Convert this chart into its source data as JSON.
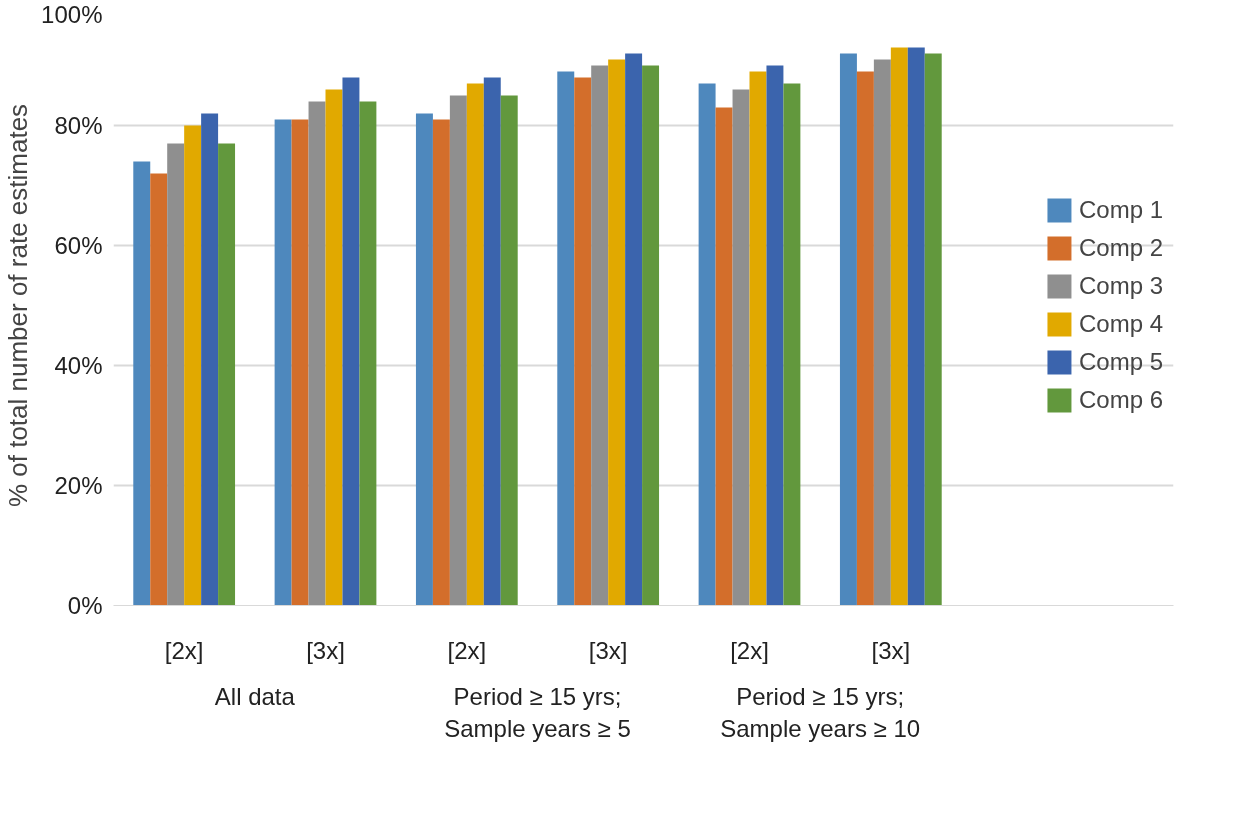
{
  "chart_data": {
    "type": "bar",
    "ylabel": "% of total number of rate estimates",
    "categories": [
      "[2x]",
      "[3x]",
      "[2x]",
      "[3x]",
      "[2x]",
      "[3x]"
    ],
    "annotations": [
      "All data",
      "Period ≥ 15 yrs;\nSample years ≥ 5",
      "Period ≥ 15 yrs;\nSample years ≥ 10"
    ],
    "series": [
      {
        "name": "Comp 1",
        "color": "#4e88bd",
        "values": [
          74,
          81,
          82,
          89,
          87,
          92
        ]
      },
      {
        "name": "Comp 2",
        "color": "#d36e2b",
        "values": [
          72,
          81,
          81,
          88,
          83,
          89
        ]
      },
      {
        "name": "Comp 3",
        "color": "#8f8f8f",
        "values": [
          77,
          84,
          85,
          90,
          86,
          91
        ]
      },
      {
        "name": "Comp 4",
        "color": "#e1a900",
        "values": [
          80,
          86,
          87,
          91,
          89,
          93
        ]
      },
      {
        "name": "Comp 5",
        "color": "#3b64ad",
        "values": [
          82,
          88,
          88,
          92,
          90,
          93
        ]
      },
      {
        "name": "Comp 6",
        "color": "#62983d",
        "values": [
          77,
          84,
          85,
          90,
          87,
          92
        ]
      }
    ],
    "ylim": [
      0,
      100
    ],
    "yticks": [
      {
        "value": 0,
        "label": "0%"
      },
      {
        "value": 20,
        "label": "20%"
      },
      {
        "value": 40,
        "label": "40%"
      },
      {
        "value": 60,
        "label": "60%"
      },
      {
        "value": 80,
        "label": "80%"
      },
      {
        "value": 100,
        "label": "100%"
      }
    ],
    "grid": "y",
    "legend": "right"
  }
}
